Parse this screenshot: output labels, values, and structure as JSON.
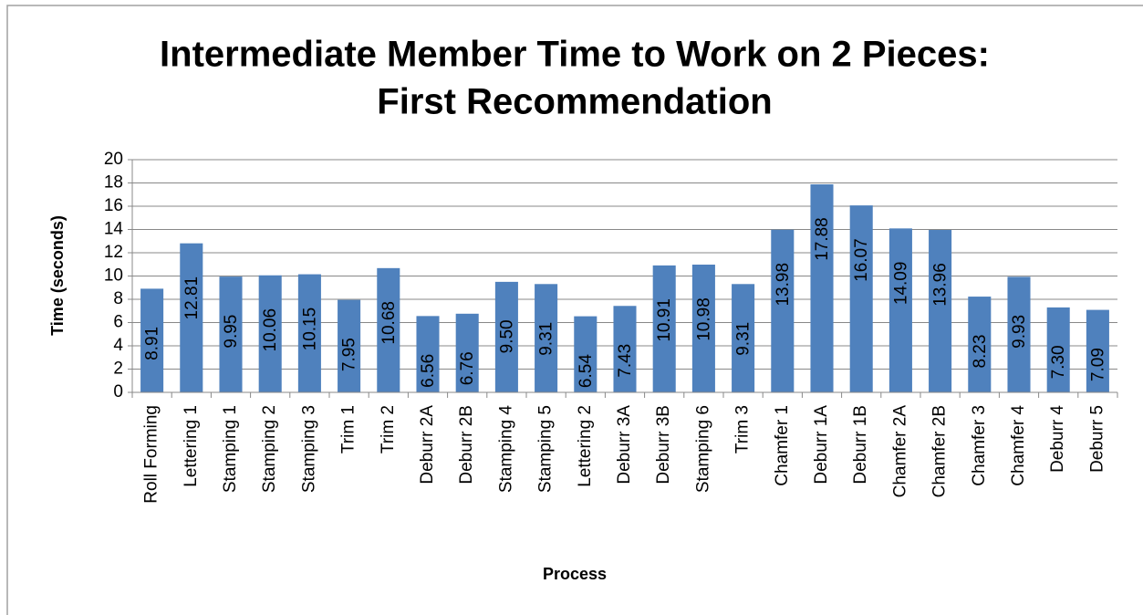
{
  "chart_data": {
    "type": "bar",
    "title": [
      "Intermediate Member Time to Work on 2 Pieces:",
      "First Recommendation"
    ],
    "x_label": "Process",
    "y_label": "Time (seconds)",
    "categories": [
      "Roll Forming",
      "Lettering 1",
      "Stamping 1",
      "Stamping 2",
      "Stamping 3",
      "Trim 1",
      "Trim 2",
      "Deburr 2A",
      "Deburr 2B",
      "Stamping 4",
      "Stamping 5",
      "Lettering 2",
      "Deburr 3A",
      "Deburr 3B",
      "Stamping 6",
      "Trim 3",
      "Chamfer 1",
      "Deburr 1A",
      "Deburr 1B",
      "Chamfer 2A",
      "Chamfer 2B",
      "Chamfer 3",
      "Chamfer 4",
      "Deburr 4",
      "Deburr 5"
    ],
    "values": [
      8.91,
      12.81,
      9.95,
      10.06,
      10.15,
      7.95,
      10.68,
      6.56,
      6.76,
      9.5,
      9.31,
      6.54,
      7.43,
      10.91,
      10.98,
      9.31,
      13.98,
      17.88,
      16.07,
      14.09,
      13.96,
      8.23,
      9.93,
      7.3,
      7.09
    ],
    "value_labels": [
      "8.91",
      "12.81",
      "9.95",
      "10.06",
      "10.15",
      "7.95",
      "10.68",
      "6.56",
      "6.76",
      "9.50",
      "9.31",
      "6.54",
      "7.43",
      "10.91",
      "10.98",
      "9.31",
      "13.98",
      "17.88",
      "16.07",
      "14.09",
      "13.96",
      "8.23",
      "9.93",
      "7.30",
      "7.09"
    ],
    "color": "#4f81bd",
    "ylim": [
      0,
      20
    ],
    "yticks": [
      0,
      2,
      4,
      6,
      8,
      10,
      12,
      14,
      16,
      18,
      20
    ],
    "grid": true
  }
}
